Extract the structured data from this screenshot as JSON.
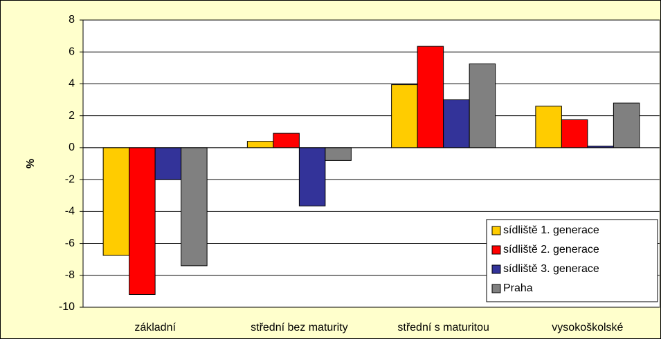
{
  "chart_data": {
    "type": "bar",
    "ylabel": "%",
    "categories": [
      "základní",
      "střední bez maturity",
      "střední s maturitou",
      "vysokoškolské"
    ],
    "series": [
      {
        "name": "sídliště 1. generace",
        "color": "#ffcc00",
        "values": [
          -6.75,
          0.4,
          3.95,
          2.6
        ]
      },
      {
        "name": "sídliště 2. generace",
        "color": "#ff0000",
        "values": [
          -9.2,
          0.9,
          6.35,
          1.75
        ]
      },
      {
        "name": "sídliště 3. generace",
        "color": "#333399",
        "values": [
          -2.0,
          -3.65,
          3.0,
          0.1
        ]
      },
      {
        "name": "Praha",
        "color": "#808080",
        "values": [
          -7.4,
          -0.8,
          5.25,
          2.8
        ]
      }
    ],
    "ylim": [
      -10,
      8
    ],
    "yticks": [
      -10,
      -8,
      -6,
      -4,
      -2,
      0,
      2,
      4,
      6,
      8
    ],
    "grid": true,
    "legend": "lower right"
  }
}
